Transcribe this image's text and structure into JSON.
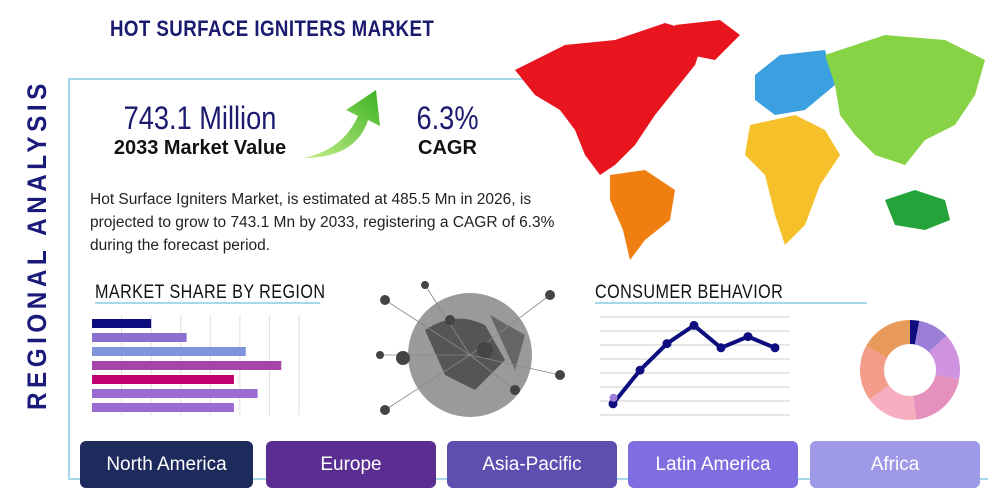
{
  "title": "HOT SURFACE IGNITERS MARKET",
  "side_label": "REGIONAL ANALYSIS",
  "market_value": {
    "value": "743.1 Million",
    "label": "2033 Market Value"
  },
  "cagr": {
    "value": "6.3%",
    "label": "CAGR"
  },
  "description": "Hot Surface Igniters Market, is estimated at 485.5 Mn in 2026, is projected to grow to 743.1 Mn by 2033, registering a CAGR of 6.3% during the forecast period.",
  "sections": {
    "share": "MARKET SHARE BY REGION",
    "consumer": "CONSUMER BEHAVIOR"
  },
  "regions": [
    "North America",
    "Europe",
    "Asia-Pacific",
    "Latin America",
    "Africa"
  ],
  "colors": {
    "accent": "#1a1a6e",
    "frame": "#a7d8e8",
    "buttons": [
      "#1c2a5c",
      "#5a2d91",
      "#5c4fb0",
      "#7e6ee0",
      "#9e9ae8"
    ]
  },
  "chart_data": [
    {
      "type": "bar",
      "orientation": "horizontal",
      "values": [
        2.0,
        3.2,
        5.2,
        6.4,
        4.8,
        5.6,
        4.8
      ],
      "colors": [
        "#0d0d80",
        "#8a6fcf",
        "#7e95de",
        "#a545a8",
        "#c0006f",
        "#9a6bd0",
        "#9a6bd0"
      ],
      "xlim": [
        0,
        7
      ],
      "grid": true
    },
    {
      "type": "line",
      "values": [
        0.8,
        3.2,
        5.1,
        6.4,
        4.8,
        5.6,
        4.8
      ],
      "ylim": [
        0,
        7
      ],
      "grid": true,
      "color": "#0d0d80"
    },
    {
      "type": "pie",
      "donut": true,
      "values": [
        3,
        10,
        15,
        20,
        17,
        18,
        17
      ],
      "colors": [
        "#0d0d80",
        "#9b7fd6",
        "#cf93df",
        "#e591bd",
        "#f6adc0",
        "#f39c8a",
        "#e89a5a"
      ]
    }
  ]
}
